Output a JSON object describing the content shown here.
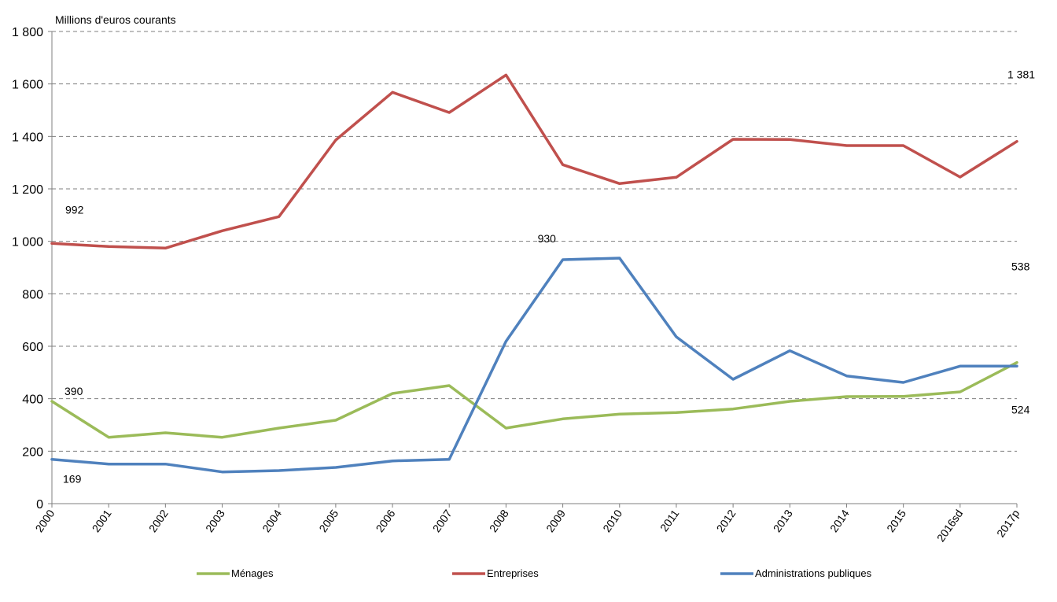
{
  "chart_data": {
    "type": "line",
    "title": "",
    "ylabel": "Millions d'euros courants",
    "xlabel": "",
    "ylim": [
      0,
      1800
    ],
    "y_ticks": [
      0,
      200,
      400,
      600,
      800,
      1000,
      1200,
      1400,
      1600,
      1800
    ],
    "y_tick_labels": [
      "0",
      "200",
      "400",
      "600",
      "800",
      "1 000",
      "1 200",
      "1 400",
      "1 600",
      "1 800"
    ],
    "grid": "horizontal dashed",
    "legend_position": "bottom",
    "categories": [
      "2000",
      "2001",
      "2002",
      "2003",
      "2004",
      "2005",
      "2006",
      "2007",
      "2008",
      "2009",
      "2010",
      "2011",
      "2012",
      "2013",
      "2014",
      "2015",
      "2016sd",
      "2017p"
    ],
    "series": [
      {
        "name": "Ménages",
        "color": "#9bbb59",
        "values": [
          390,
          253,
          270,
          253,
          288,
          318,
          420,
          450,
          288,
          323,
          341,
          347,
          361,
          390,
          408,
          409,
          426,
          538
        ]
      },
      {
        "name": "Entreprises",
        "color": "#c0504d",
        "values": [
          992,
          980,
          974,
          1040,
          1094,
          1386,
          1568,
          1491,
          1634,
          1292,
          1220,
          1244,
          1389,
          1388,
          1365,
          1365,
          1245,
          1381
        ]
      },
      {
        "name": "Administrations publiques",
        "color": "#4f81bd",
        "values": [
          169,
          151,
          151,
          121,
          126,
          138,
          163,
          169,
          619,
          930,
          936,
          636,
          474,
          583,
          487,
          462,
          524,
          524
        ]
      }
    ],
    "annotations": [
      {
        "text": "992",
        "category": "2000",
        "series": "Entreprises"
      },
      {
        "text": "390",
        "category": "2000",
        "series": "Ménages"
      },
      {
        "text": "169",
        "category": "2000",
        "series": "Administrations publiques"
      },
      {
        "text": "930",
        "category": "2009",
        "series": "Administrations publiques"
      },
      {
        "text": "1 381",
        "category": "2017p",
        "series": "Entreprises"
      },
      {
        "text": "538",
        "category": "2017p",
        "series": "Ménages"
      },
      {
        "text": "524",
        "category": "2017p",
        "series": "Administrations publiques"
      }
    ]
  }
}
